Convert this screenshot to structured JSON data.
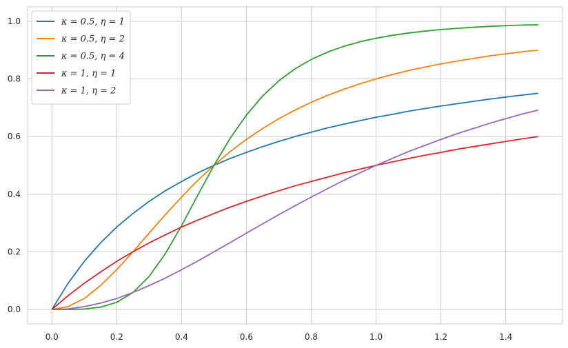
{
  "chart_data": {
    "type": "line",
    "title": "",
    "xlabel": "",
    "ylabel": "",
    "xlim": [
      -0.075,
      1.575
    ],
    "ylim": [
      -0.05,
      1.05
    ],
    "xticks": [
      0.0,
      0.2,
      0.4,
      0.6,
      0.8,
      1.0,
      1.2,
      1.4
    ],
    "xtick_labels": [
      "0.0",
      "0.2",
      "0.4",
      "0.6",
      "0.8",
      "1.0",
      "1.2",
      "1.4"
    ],
    "yticks": [
      0.0,
      0.2,
      0.4,
      0.6,
      0.8,
      1.0
    ],
    "ytick_labels": [
      "0.0",
      "0.2",
      "0.4",
      "0.6",
      "0.8",
      "1.0"
    ],
    "grid": true,
    "legend_position": "top-left",
    "x": [
      0.0,
      0.05,
      0.1,
      0.15,
      0.2,
      0.25,
      0.3,
      0.35,
      0.4,
      0.45,
      0.5,
      0.55,
      0.6,
      0.65,
      0.7,
      0.75,
      0.8,
      0.85,
      0.9,
      0.95,
      1.0,
      1.05,
      1.1,
      1.15,
      1.2,
      1.25,
      1.3,
      1.35,
      1.4,
      1.45,
      1.5
    ],
    "series": [
      {
        "name": "κ = 0.5, η = 1",
        "color": "#1f77b4",
        "values": [
          0.0,
          0.091,
          0.167,
          0.231,
          0.286,
          0.333,
          0.375,
          0.412,
          0.444,
          0.474,
          0.5,
          0.524,
          0.545,
          0.565,
          0.583,
          0.6,
          0.615,
          0.63,
          0.643,
          0.655,
          0.667,
          0.677,
          0.688,
          0.697,
          0.706,
          0.714,
          0.722,
          0.73,
          0.737,
          0.744,
          0.75
        ]
      },
      {
        "name": "κ = 0.5, η = 2",
        "color": "#ff7f0e",
        "values": [
          0.0,
          0.01,
          0.038,
          0.083,
          0.138,
          0.2,
          0.265,
          0.329,
          0.39,
          0.448,
          0.5,
          0.548,
          0.59,
          0.628,
          0.662,
          0.692,
          0.719,
          0.743,
          0.764,
          0.783,
          0.8,
          0.815,
          0.829,
          0.841,
          0.852,
          0.862,
          0.871,
          0.88,
          0.887,
          0.894,
          0.9
        ]
      },
      {
        "name": "κ = 0.5, η = 4",
        "color": "#2ca02c",
        "values": [
          0.0,
          0.0001,
          0.0016,
          0.008,
          0.0249,
          0.0588,
          0.1147,
          0.1936,
          0.2907,
          0.3963,
          0.5,
          0.5942,
          0.6746,
          0.7407,
          0.7935,
          0.8351,
          0.8676,
          0.893,
          0.913,
          0.9288,
          0.9412,
          0.9512,
          0.9593,
          0.9659,
          0.9713,
          0.9756,
          0.9793,
          0.9823,
          0.9848,
          0.9869,
          0.9878
        ]
      },
      {
        "name": "κ = 1, η = 1",
        "color": "#d62728",
        "values": [
          0.0,
          0.048,
          0.091,
          0.13,
          0.167,
          0.2,
          0.231,
          0.259,
          0.286,
          0.31,
          0.333,
          0.355,
          0.375,
          0.394,
          0.412,
          0.429,
          0.444,
          0.459,
          0.474,
          0.487,
          0.5,
          0.512,
          0.524,
          0.535,
          0.545,
          0.556,
          0.565,
          0.574,
          0.583,
          0.592,
          0.6
        ]
      },
      {
        "name": "κ = 1, η = 2",
        "color": "#9467bd",
        "values": [
          0.0,
          0.002,
          0.01,
          0.022,
          0.038,
          0.059,
          0.083,
          0.109,
          0.138,
          0.168,
          0.2,
          0.232,
          0.265,
          0.297,
          0.329,
          0.36,
          0.39,
          0.419,
          0.448,
          0.474,
          0.5,
          0.524,
          0.548,
          0.569,
          0.59,
          0.61,
          0.628,
          0.646,
          0.662,
          0.678,
          0.692
        ]
      }
    ]
  }
}
